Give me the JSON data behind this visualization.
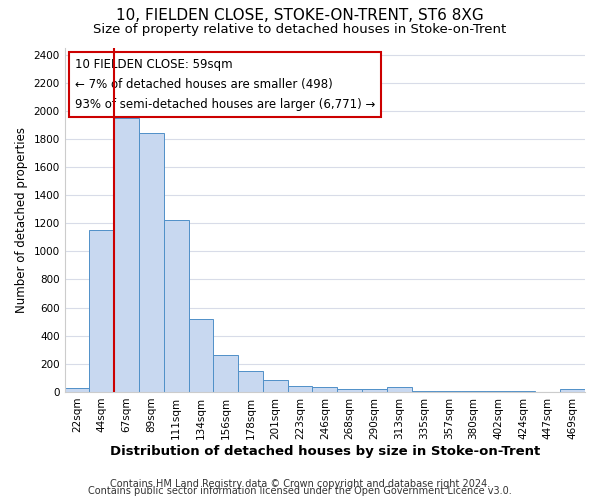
{
  "title": "10, FIELDEN CLOSE, STOKE-ON-TRENT, ST6 8XG",
  "subtitle": "Size of property relative to detached houses in Stoke-on-Trent",
  "xlabel": "Distribution of detached houses by size in Stoke-on-Trent",
  "ylabel": "Number of detached properties",
  "bins": [
    "22sqm",
    "44sqm",
    "67sqm",
    "89sqm",
    "111sqm",
    "134sqm",
    "156sqm",
    "178sqm",
    "201sqm",
    "223sqm",
    "246sqm",
    "268sqm",
    "290sqm",
    "313sqm",
    "335sqm",
    "357sqm",
    "380sqm",
    "402sqm",
    "424sqm",
    "447sqm",
    "469sqm"
  ],
  "bar_heights": [
    30,
    1150,
    1950,
    1840,
    1220,
    520,
    265,
    150,
    85,
    45,
    38,
    20,
    20,
    38,
    5,
    5,
    5,
    5,
    5,
    3,
    20
  ],
  "bar_color": "#c8d8f0",
  "bar_edge_color": "#5090c8",
  "vline_x_index": 2,
  "vline_color": "#cc0000",
  "annotation_text": "10 FIELDEN CLOSE: 59sqm\n← 7% of detached houses are smaller (498)\n93% of semi-detached houses are larger (6,771) →",
  "annotation_box_color": "white",
  "annotation_box_edge": "#cc0000",
  "ylim": [
    0,
    2450
  ],
  "yticks": [
    0,
    200,
    400,
    600,
    800,
    1000,
    1200,
    1400,
    1600,
    1800,
    2000,
    2200,
    2400
  ],
  "footnote1": "Contains HM Land Registry data © Crown copyright and database right 2024.",
  "footnote2": "Contains public sector information licensed under the Open Government Licence v3.0.",
  "bg_color": "#ffffff",
  "plot_bg_color": "#ffffff",
  "grid_color": "#d8dce8",
  "title_fontsize": 11,
  "subtitle_fontsize": 9.5,
  "xlabel_fontsize": 9.5,
  "ylabel_fontsize": 8.5,
  "tick_fontsize": 7.5,
  "annotation_fontsize": 8.5,
  "footnote_fontsize": 7
}
